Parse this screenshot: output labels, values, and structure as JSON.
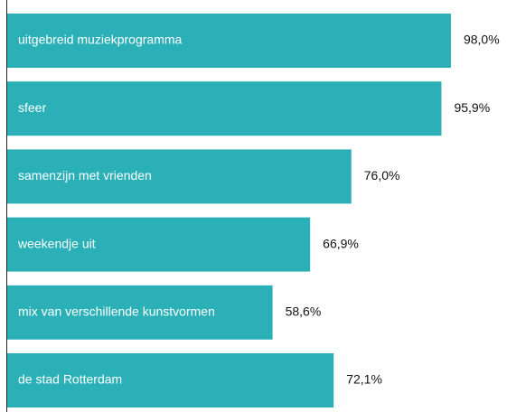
{
  "chart_data": {
    "type": "bar",
    "orientation": "horizontal",
    "color": "#2bb0b8",
    "categories": [
      "uitgebreid muziekprogramma",
      "sfeer",
      "samenzijn met vrienden",
      "weekendje uit",
      "mix van verschillende kunstvormen",
      "de stad Rotterdam"
    ],
    "values": [
      98.0,
      95.9,
      76.0,
      66.9,
      58.6,
      72.1
    ],
    "value_labels": [
      "98,0%",
      "95,9%",
      "76,0%",
      "66,9%",
      "58,6%",
      "72,1%"
    ]
  }
}
